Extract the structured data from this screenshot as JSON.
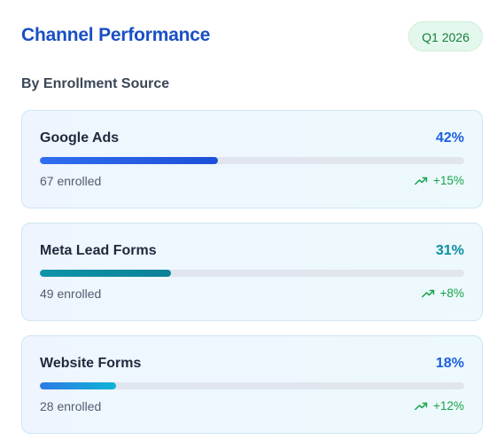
{
  "header": {
    "title": "Channel Performance",
    "period_badge": "Q1 2026"
  },
  "section": {
    "subtitle": "By Enrollment Source"
  },
  "colors": {
    "title": "#1a4fc4",
    "badge_text": "#15803d",
    "trend_up": "#16a34a"
  },
  "channels": [
    {
      "name": "Google Ads",
      "percent_label": "42%",
      "percent_value": 42,
      "enrolled": "67 enrolled",
      "trend": "+15%",
      "trend_icon": "trending-up-icon",
      "pct_color": "#1d5fe0",
      "bar_gradient": [
        "#2f6ef0",
        "#1d4fd8"
      ]
    },
    {
      "name": "Meta Lead Forms",
      "percent_label": "31%",
      "percent_value": 31,
      "enrolled": "49 enrolled",
      "trend": "+8%",
      "trend_icon": "trending-up-icon",
      "pct_color": "#0e8ea0",
      "bar_gradient": [
        "#0d94a8",
        "#0b8199"
      ]
    },
    {
      "name": "Website Forms",
      "percent_label": "18%",
      "percent_value": 18,
      "enrolled": "28 enrolled",
      "trend": "+12%",
      "trend_icon": "trending-up-icon",
      "pct_color": "#1d5fe0",
      "bar_gradient": [
        "#2e7ae6",
        "#11b3d6"
      ]
    }
  ]
}
